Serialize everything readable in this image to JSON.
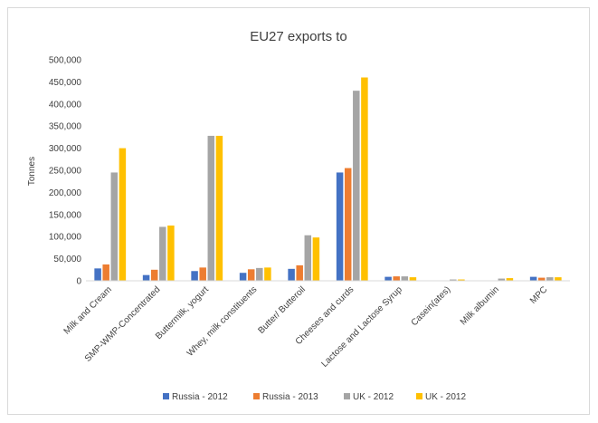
{
  "chart_data": {
    "type": "bar",
    "title": "EU27 exports to",
    "ylabel": "Tonnes",
    "xlabel": "",
    "ylim": [
      0,
      500000
    ],
    "yticks": [
      0,
      50000,
      100000,
      150000,
      200000,
      250000,
      300000,
      350000,
      400000,
      450000,
      500000
    ],
    "ytick_labels": [
      "0",
      "50,000",
      "100,000",
      "150,000",
      "200,000",
      "250,000",
      "300,000",
      "350,000",
      "400,000",
      "450,000",
      "500,000"
    ],
    "grid": false,
    "legend_position": "bottom",
    "categories": [
      "Milk and Cream",
      "SMP-WMP-Concentrated",
      "Buttermilk, yogurt",
      "Whey, milk constituents",
      "Butter/ Butteroil",
      "Cheeses and curds",
      "Lactose and Lactose Syrup",
      "Casein(ates)",
      "Milk albumin",
      "MPC"
    ],
    "series": [
      {
        "name": "Russia - 2012",
        "color": "#4472c4",
        "values": [
          28000,
          13000,
          22000,
          18000,
          27000,
          245000,
          9000,
          1000,
          1000,
          9000
        ]
      },
      {
        "name": "Russia - 2013",
        "color": "#ed7d31",
        "values": [
          37000,
          25000,
          30000,
          26000,
          35000,
          255000,
          10000,
          1000,
          1000,
          7000
        ]
      },
      {
        "name": "UK - 2012",
        "color": "#a5a5a5",
        "values": [
          245000,
          122000,
          328000,
          29000,
          103000,
          430000,
          10000,
          3000,
          5000,
          8000
        ]
      },
      {
        "name": "UK - 2012",
        "color": "#ffc000",
        "values": [
          300000,
          125000,
          328000,
          30000,
          98000,
          460000,
          8000,
          3000,
          6000,
          8000
        ]
      }
    ]
  }
}
